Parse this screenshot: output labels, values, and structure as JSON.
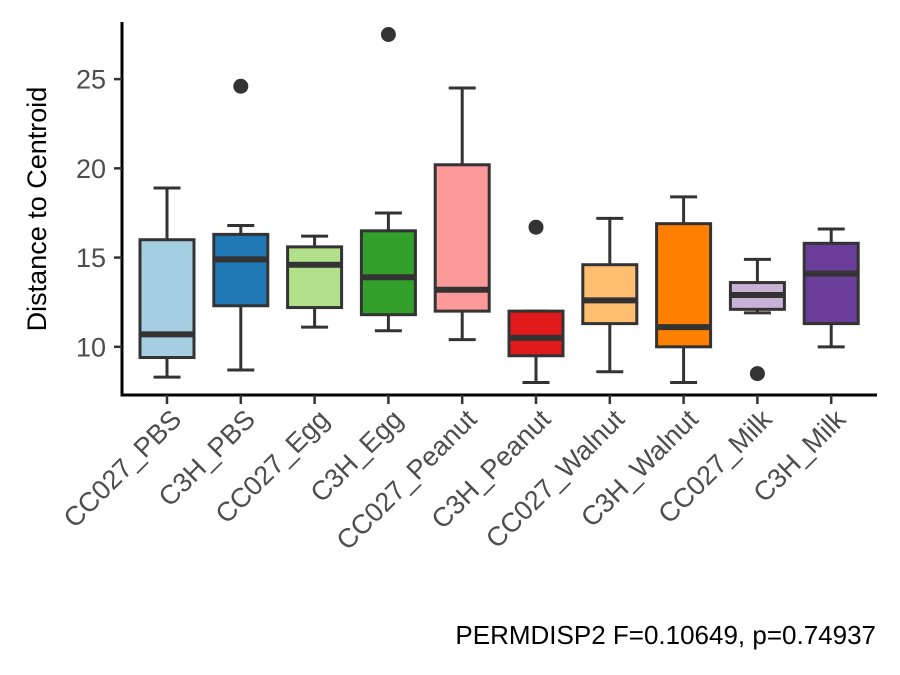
{
  "chart_data": {
    "type": "boxplot",
    "title": "",
    "xlabel": "",
    "ylabel": "Distance to Centroid",
    "ylim": [
      7.3,
      28.2
    ],
    "yticks": [
      10,
      15,
      20,
      25
    ],
    "grid": false,
    "legend": "none",
    "caption": "PERMDISP2 F=0.10649, p=0.74937",
    "categories": [
      "CC027_PBS",
      "C3H_PBS",
      "CC027_Egg",
      "C3H_Egg",
      "CC027_Peanut",
      "C3H_Peanut",
      "CC027_Walnut",
      "C3H_Walnut",
      "CC027_Milk",
      "C3H_Milk"
    ],
    "boxes": [
      {
        "category": "CC027_PBS",
        "color": "#A6CEE3",
        "min": 8.3,
        "q1": 9.4,
        "median": 10.7,
        "q3": 16.0,
        "max": 18.9,
        "outliers": []
      },
      {
        "category": "C3H_PBS",
        "color": "#1F78B4",
        "min": 8.7,
        "q1": 12.3,
        "median": 14.9,
        "q3": 16.3,
        "max": 16.8,
        "outliers": [
          24.6
        ]
      },
      {
        "category": "CC027_Egg",
        "color": "#B2DF8A",
        "min": 11.1,
        "q1": 12.2,
        "median": 14.6,
        "q3": 15.6,
        "max": 16.2,
        "outliers": []
      },
      {
        "category": "C3H_Egg",
        "color": "#33A02C",
        "min": 10.9,
        "q1": 11.8,
        "median": 13.9,
        "q3": 16.5,
        "max": 17.5,
        "outliers": [
          27.5
        ]
      },
      {
        "category": "CC027_Peanut",
        "color": "#FB9A99",
        "min": 10.4,
        "q1": 12.0,
        "median": 13.2,
        "q3": 20.2,
        "max": 24.5,
        "outliers": []
      },
      {
        "category": "C3H_Peanut",
        "color": "#E31A1C",
        "min": 8.0,
        "q1": 9.5,
        "median": 10.5,
        "q3": 12.0,
        "max": 12.0,
        "outliers": [
          16.7
        ]
      },
      {
        "category": "CC027_Walnut",
        "color": "#FDBF6F",
        "min": 8.6,
        "q1": 11.3,
        "median": 12.6,
        "q3": 14.6,
        "max": 17.2,
        "outliers": []
      },
      {
        "category": "C3H_Walnut",
        "color": "#FF7F00",
        "min": 8.0,
        "q1": 10.0,
        "median": 11.1,
        "q3": 16.9,
        "max": 18.4,
        "outliers": []
      },
      {
        "category": "CC027_Milk",
        "color": "#CAB2D6",
        "min": 11.9,
        "q1": 12.1,
        "median": 12.9,
        "q3": 13.6,
        "max": 14.9,
        "outliers": [
          8.5
        ]
      },
      {
        "category": "C3H_Milk",
        "color": "#6A3D9A",
        "min": 10.0,
        "q1": 11.3,
        "median": 14.1,
        "q3": 15.8,
        "max": 16.6,
        "outliers": []
      }
    ]
  }
}
